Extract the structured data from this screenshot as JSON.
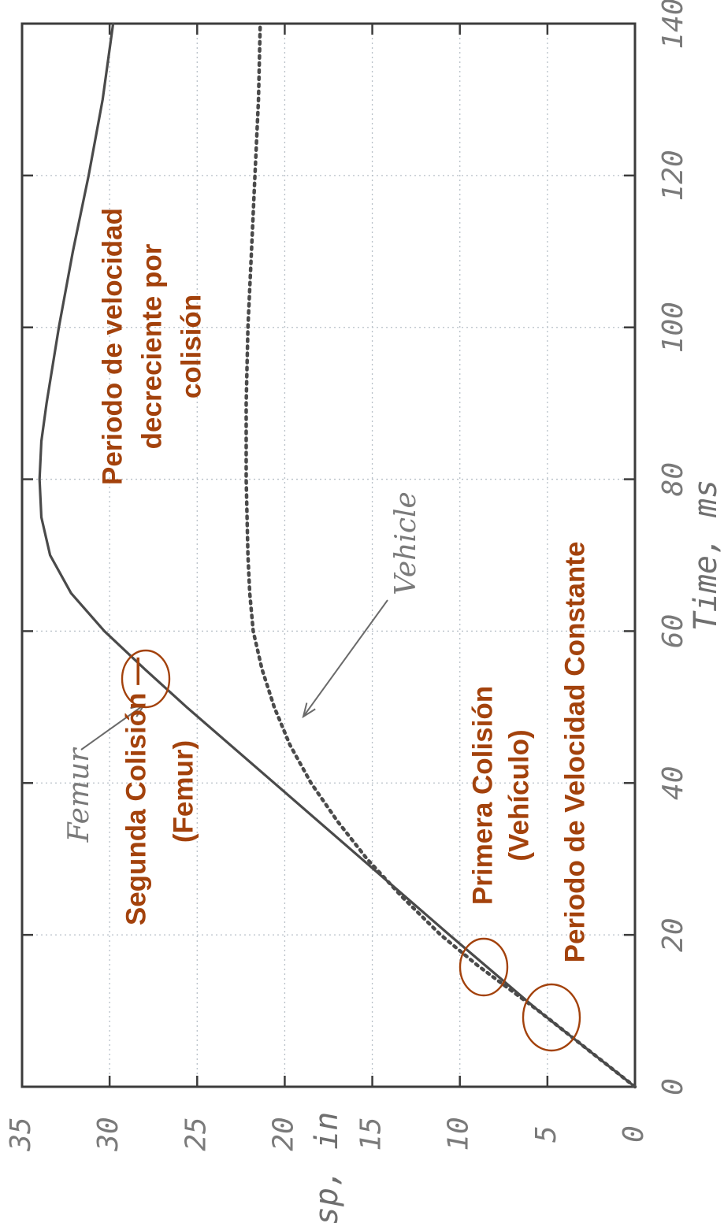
{
  "chart_data": {
    "type": "line",
    "xlabel": "Time, ms",
    "ylabel": "Disp, in",
    "xlim": [
      0,
      140
    ],
    "ylim": [
      0,
      35
    ],
    "x_ticks": [
      "0",
      "20",
      "40",
      "60",
      "80",
      "100",
      "120",
      "140"
    ],
    "y_ticks": [
      "0",
      "5",
      "10",
      "15",
      "20",
      "25",
      "30",
      "35"
    ],
    "grid": true,
    "orientation": "rotated 90 degrees counter-clockwise",
    "series": [
      {
        "name": "Femur",
        "style": "solid",
        "color": "#4a4a4a",
        "x": [
          0,
          10,
          20,
          30,
          40,
          50,
          55,
          60,
          65,
          70,
          75,
          80,
          85,
          90,
          100,
          110,
          120,
          130,
          140
        ],
        "y": [
          0,
          5.5,
          10.6,
          15.6,
          20.6,
          25.6,
          28.0,
          30.3,
          32.2,
          33.4,
          33.9,
          34.0,
          33.9,
          33.6,
          32.9,
          32.1,
          31.2,
          30.4,
          29.8
        ]
      },
      {
        "name": "Vehicle",
        "style": "dotted",
        "color": "#4a4a4a",
        "x": [
          0,
          10,
          16,
          20,
          25,
          30,
          35,
          40,
          45,
          50,
          55,
          60,
          65,
          70,
          80,
          90,
          100,
          110,
          120,
          130,
          140
        ],
        "y": [
          0,
          5.5,
          9.0,
          11.1,
          13.3,
          15.3,
          17.0,
          18.5,
          19.7,
          20.6,
          21.3,
          21.8,
          22.0,
          22.1,
          22.2,
          22.2,
          22.1,
          21.9,
          21.7,
          21.5,
          21.4
        ]
      }
    ],
    "annotations": [
      {
        "text_lines": [
          "Periodo de velocidad",
          "decreciente por",
          "colisión"
        ]
      },
      {
        "text_lines": [
          "Segunda Colisión —",
          "(Femur)"
        ],
        "circle_at": {
          "x": 55,
          "y": 28
        }
      },
      {
        "text_lines": [
          "Primera Colisión",
          "(Vehículo)"
        ],
        "circle_at": {
          "x": 16,
          "y": 8.3
        }
      },
      {
        "text_lines": [
          "Periodo de Velocidad Constante"
        ],
        "circle_at": {
          "x": 9,
          "y": 4.6
        }
      }
    ],
    "annotation_color": "#a3420c"
  }
}
